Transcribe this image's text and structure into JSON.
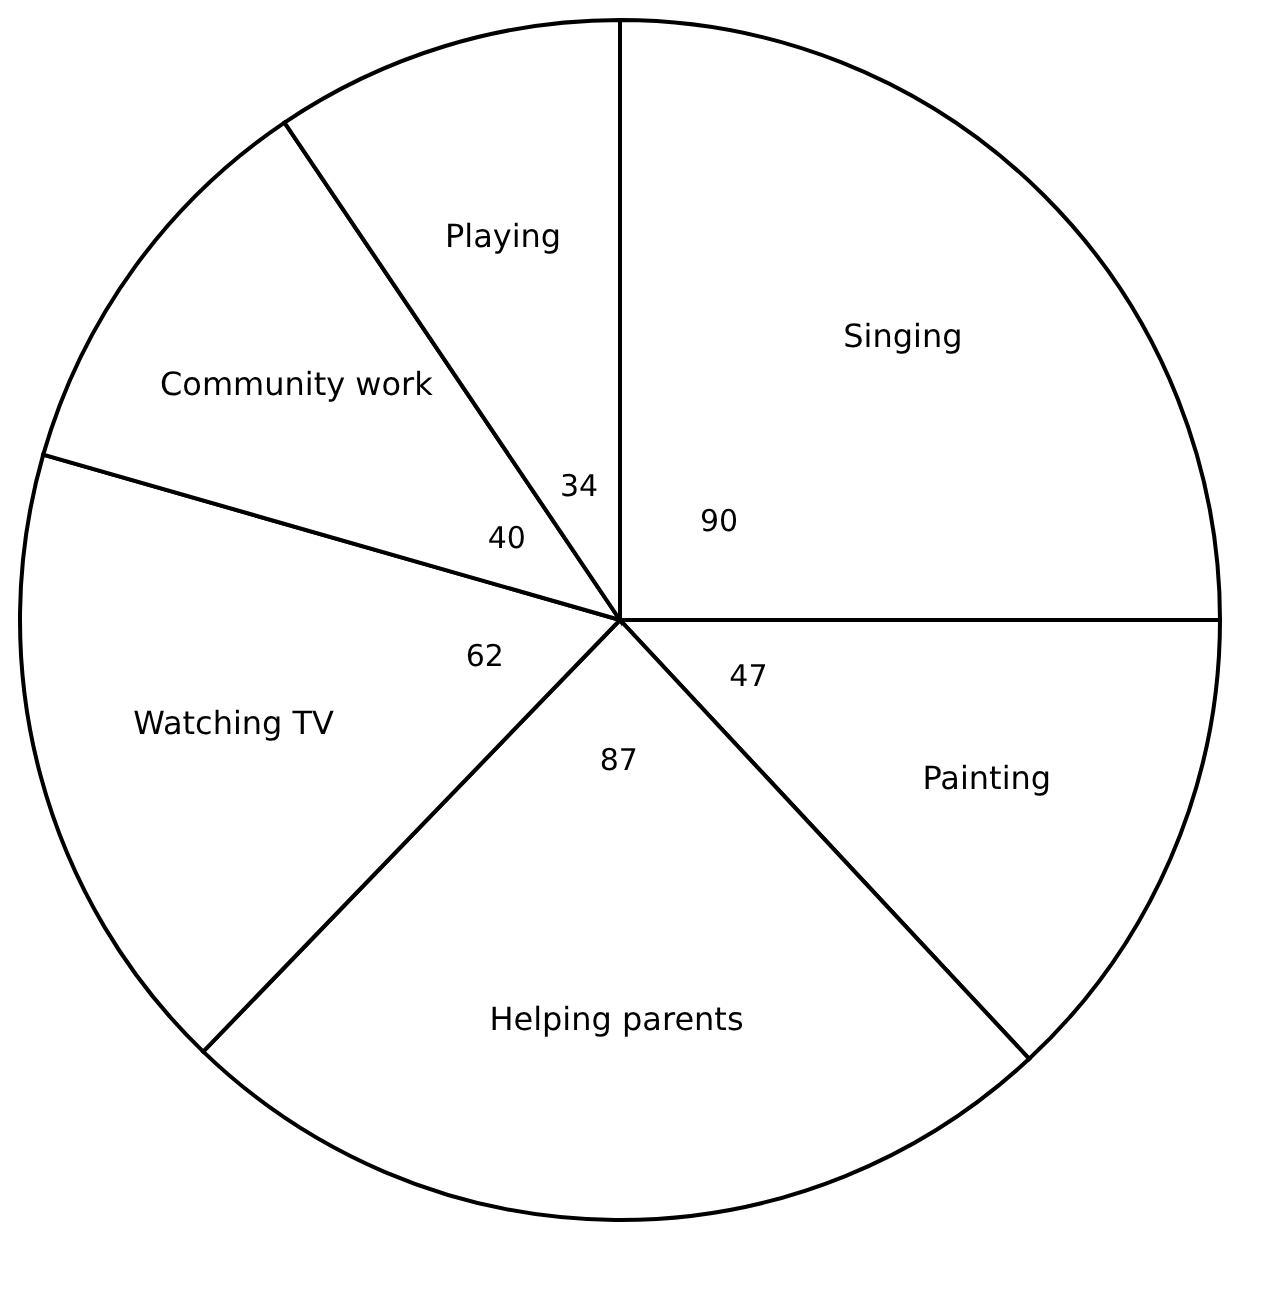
{
  "chart_data": {
    "type": "pie",
    "categories": [
      "Singing",
      "Painting",
      "Helping parents",
      "Watching TV",
      "Community work",
      "Playing"
    ],
    "values": [
      90,
      47,
      87,
      62,
      40,
      34
    ],
    "colors": [
      "#ffffff",
      "#ffffff",
      "#ffffff",
      "#ffffff",
      "#ffffff",
      "#ffffff"
    ],
    "data_labels": true
  }
}
